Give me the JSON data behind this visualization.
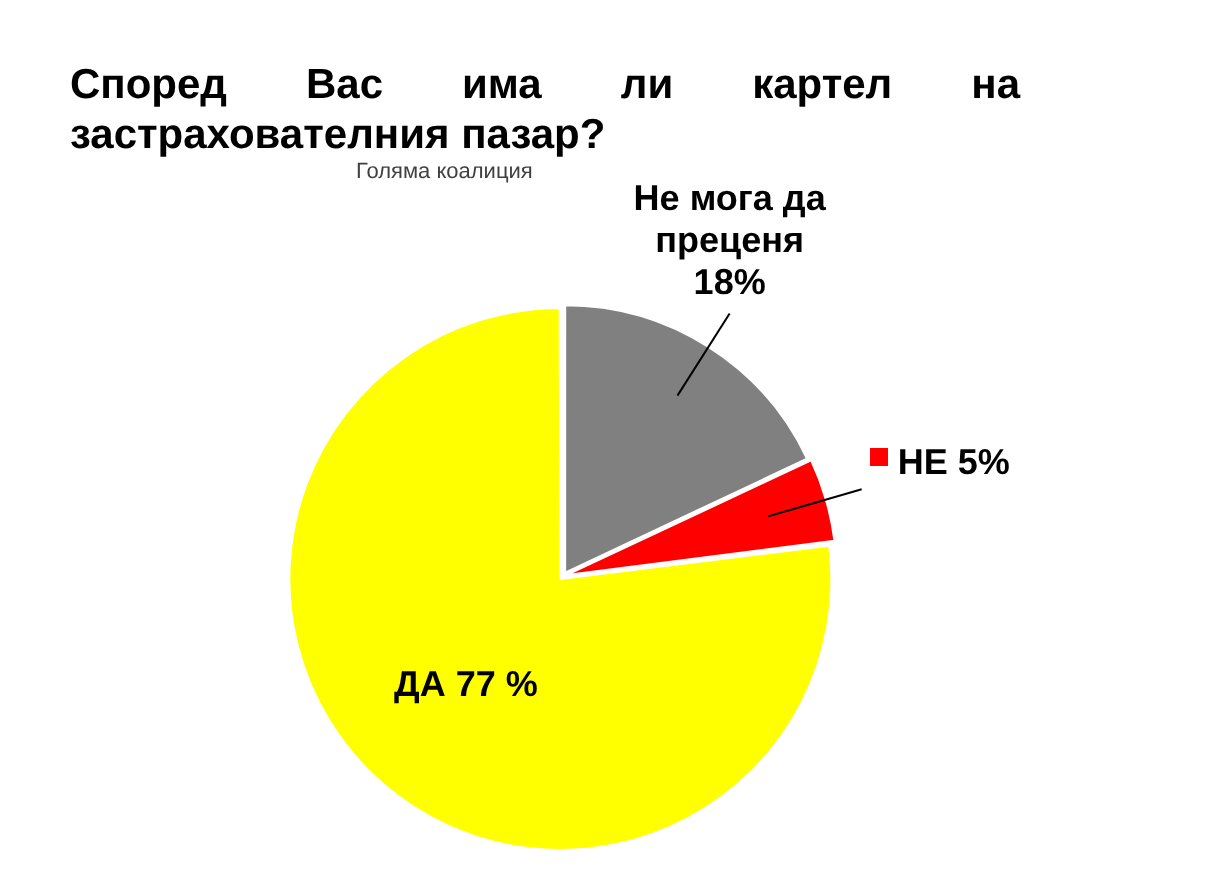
{
  "chart_data": {
    "type": "pie",
    "title": "Според Вас има ли картел на застрахователния пазар?",
    "categories": [
      "Не мога да преценя",
      "НЕ",
      "ДА"
    ],
    "values": [
      18,
      5,
      77
    ],
    "colors": [
      "#808080",
      "#ff0000",
      "#ffff00"
    ],
    "value_labels": [
      "18%",
      "5%",
      "77 %"
    ],
    "annotations": [
      "Голяма коалиция"
    ]
  }
}
